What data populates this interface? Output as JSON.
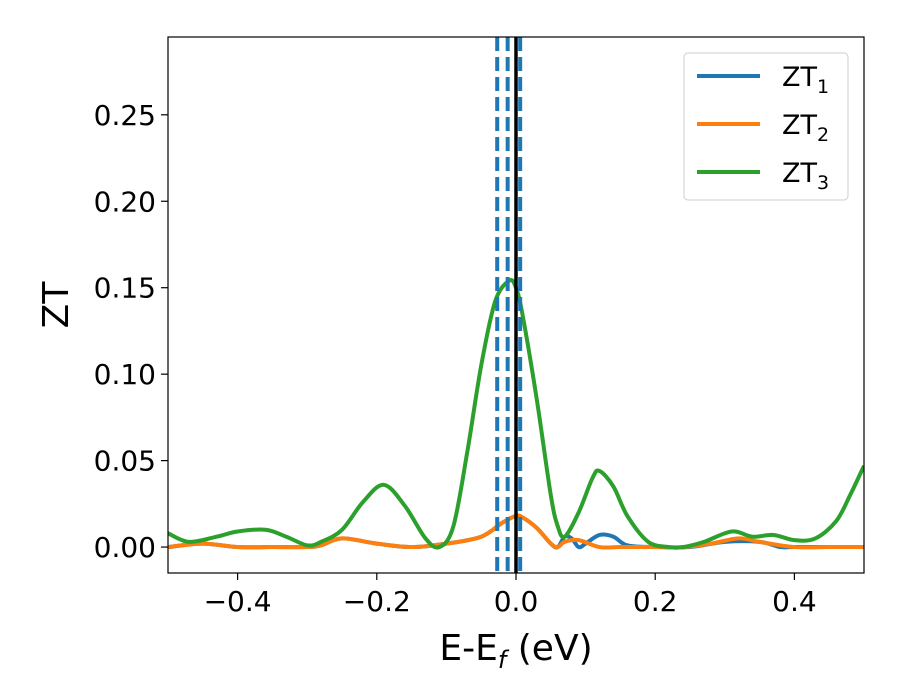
{
  "chart_data": {
    "type": "line",
    "xlabel_main": "E-E",
    "xlabel_sub": "f",
    "xlabel_unit": " (eV)",
    "ylabel": "ZT",
    "xlim": [
      -0.5,
      0.5
    ],
    "ylim": [
      -0.015,
      0.295
    ],
    "xticks": [
      -0.4,
      -0.2,
      0.0,
      0.2,
      0.4
    ],
    "xtick_labels": [
      "−0.4",
      "−0.2",
      "0.0",
      "0.2",
      "0.4"
    ],
    "yticks": [
      0.0,
      0.05,
      0.1,
      0.15,
      0.2,
      0.25
    ],
    "ytick_labels": [
      "0.00",
      "0.05",
      "0.10",
      "0.15",
      "0.20",
      "0.25"
    ],
    "grid": false,
    "legend_position": "top-right",
    "vertical_lines": [
      {
        "x": -0.027,
        "style": "dashed",
        "color": "#1f77b4"
      },
      {
        "x": -0.012,
        "style": "dashed",
        "color": "#1f77b4"
      },
      {
        "x": 0.006,
        "style": "dashed",
        "color": "#1f77b4"
      },
      {
        "x": 0.0,
        "style": "solid",
        "color": "#000000"
      }
    ],
    "series": [
      {
        "name": "ZT",
        "subscript": "1",
        "color": "#1f77b4",
        "x": [
          -0.5,
          -0.45,
          -0.4,
          -0.35,
          -0.3,
          -0.28,
          -0.25,
          -0.2,
          -0.15,
          -0.1,
          -0.05,
          -0.02,
          0.0,
          0.01,
          0.03,
          0.05,
          0.06,
          0.07,
          0.08,
          0.09,
          0.1,
          0.12,
          0.14,
          0.16,
          0.2,
          0.25,
          0.3,
          0.35,
          0.38,
          0.4,
          0.45,
          0.5
        ],
        "y": [
          0.0,
          0.002,
          0.0,
          0.0,
          0.0,
          0.001,
          0.005,
          0.002,
          0.0,
          0.002,
          0.006,
          0.014,
          0.018,
          0.017,
          0.011,
          0.002,
          0.0,
          0.006,
          0.005,
          0.0,
          0.002,
          0.007,
          0.006,
          0.001,
          0.0,
          0.0,
          0.003,
          0.003,
          0.0,
          0.0,
          0.0,
          0.0
        ]
      },
      {
        "name": "ZT",
        "subscript": "2",
        "color": "#ff7f0e",
        "x": [
          -0.5,
          -0.45,
          -0.4,
          -0.35,
          -0.3,
          -0.28,
          -0.25,
          -0.2,
          -0.15,
          -0.1,
          -0.05,
          -0.02,
          0.0,
          0.01,
          0.03,
          0.05,
          0.06,
          0.07,
          0.09,
          0.12,
          0.15,
          0.2,
          0.24,
          0.28,
          0.32,
          0.35,
          0.4,
          0.45,
          0.5
        ],
        "y": [
          0.0,
          0.002,
          0.0,
          0.0,
          0.0,
          0.001,
          0.005,
          0.002,
          0.0,
          0.002,
          0.006,
          0.014,
          0.018,
          0.017,
          0.011,
          0.002,
          0.0,
          0.003,
          0.004,
          0.0,
          0.0,
          0.0,
          0.0,
          0.002,
          0.005,
          0.003,
          0.0,
          0.0,
          0.0
        ]
      },
      {
        "name": "ZT",
        "subscript": "3",
        "color": "#2ca02c",
        "x": [
          -0.5,
          -0.47,
          -0.43,
          -0.4,
          -0.36,
          -0.33,
          -0.3,
          -0.28,
          -0.25,
          -0.22,
          -0.19,
          -0.16,
          -0.13,
          -0.11,
          -0.09,
          -0.07,
          -0.05,
          -0.03,
          -0.01,
          0.0,
          0.01,
          0.03,
          0.05,
          0.06,
          0.07,
          0.09,
          0.11,
          0.12,
          0.14,
          0.16,
          0.19,
          0.22,
          0.24,
          0.27,
          0.31,
          0.34,
          0.37,
          0.4,
          0.43,
          0.46,
          0.48,
          0.5
        ],
        "y": [
          0.008,
          0.003,
          0.006,
          0.009,
          0.01,
          0.006,
          0.001,
          0.003,
          0.01,
          0.026,
          0.036,
          0.024,
          0.005,
          0.0,
          0.012,
          0.055,
          0.105,
          0.142,
          0.154,
          0.15,
          0.133,
          0.085,
          0.03,
          0.012,
          0.006,
          0.02,
          0.04,
          0.044,
          0.035,
          0.018,
          0.003,
          0.0,
          0.0,
          0.003,
          0.009,
          0.006,
          0.007,
          0.004,
          0.005,
          0.015,
          0.03,
          0.047
        ]
      }
    ]
  }
}
